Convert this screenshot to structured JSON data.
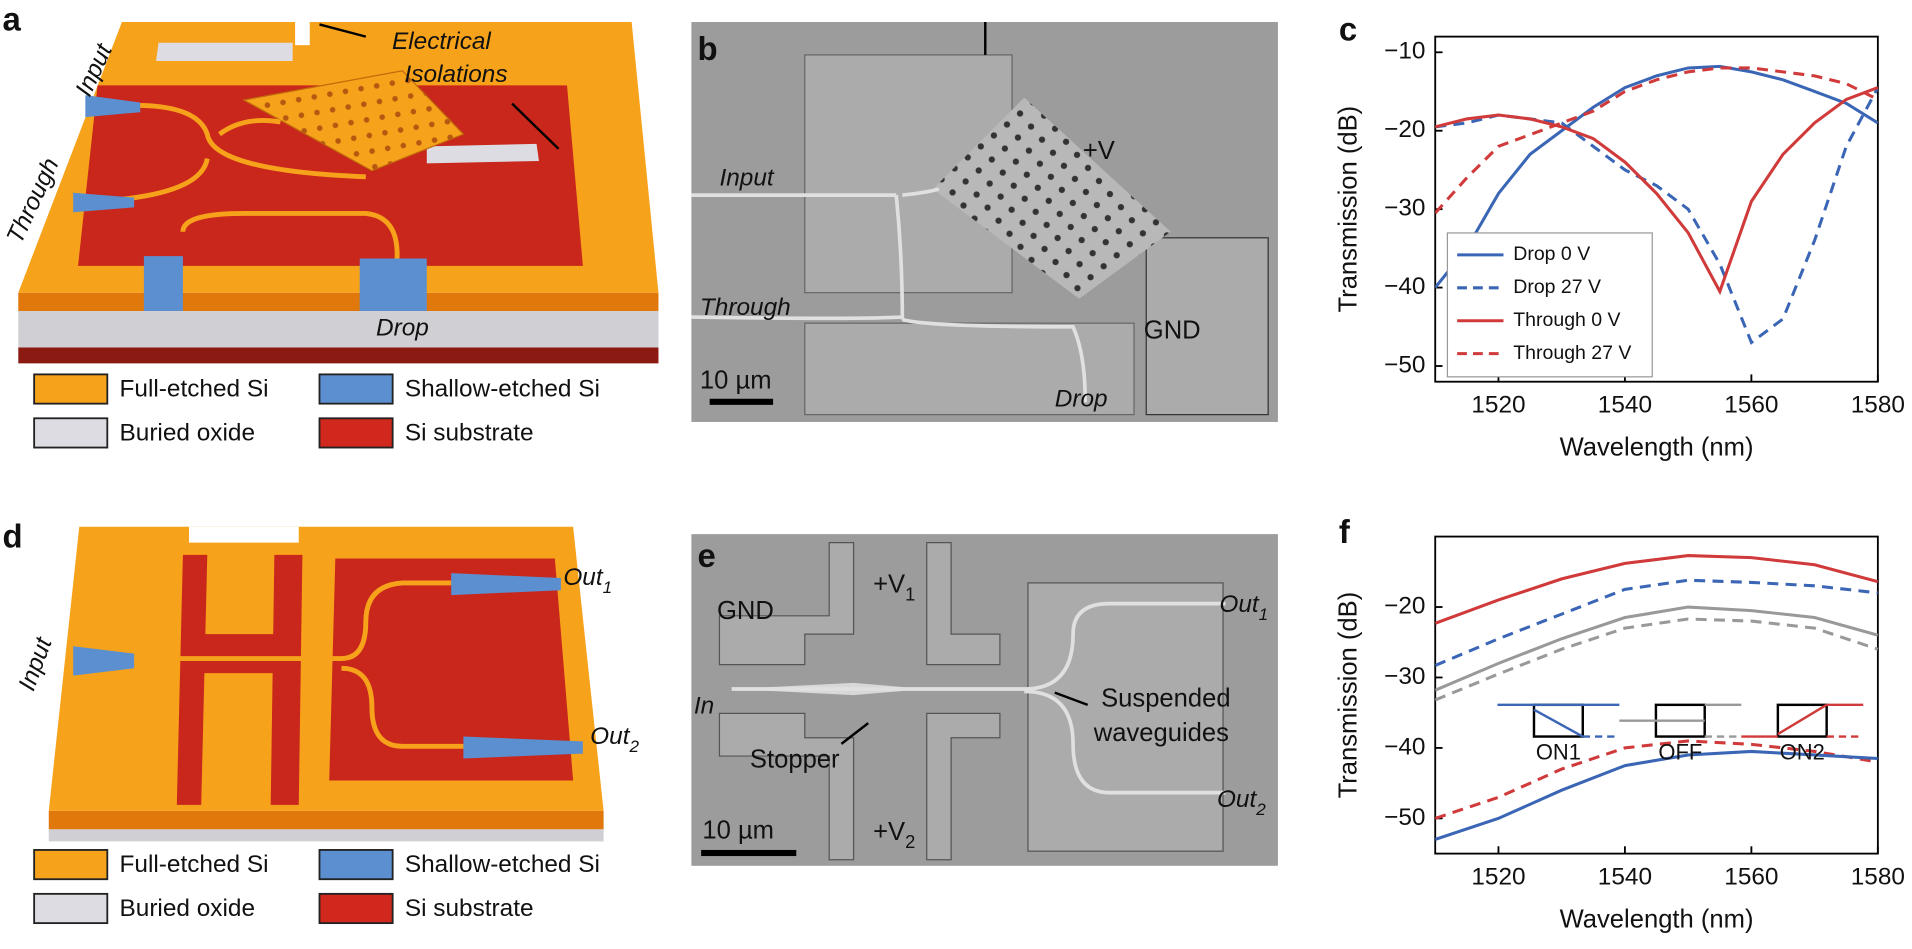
{
  "panels": {
    "a": {
      "label": "a",
      "input": "Input",
      "through": "Through",
      "drop": "Drop",
      "isolations": [
        "Electrical",
        "Isolations"
      ],
      "legend": [
        {
          "text": "Full-etched Si",
          "color": "#f7a21b"
        },
        {
          "text": "Shallow-etched Si",
          "color": "#5b8fd0"
        },
        {
          "text": "Buried oxide",
          "color": "#dcdce2"
        },
        {
          "text": "Si substrate",
          "color": "#d0281c"
        }
      ]
    },
    "b": {
      "label": "b",
      "input": "Input",
      "through": "Through",
      "drop": "Drop",
      "plus_v": "+V",
      "gnd": "GND",
      "scale": "10 µm"
    },
    "d": {
      "label": "d",
      "input": "Input",
      "out1": [
        "Out",
        "1"
      ],
      "out2": [
        "Out",
        "2"
      ],
      "legend": [
        {
          "text": "Full-etched Si",
          "color": "#f7a21b"
        },
        {
          "text": "Shallow-etched Si",
          "color": "#5b8fd0"
        },
        {
          "text": "Buried oxide",
          "color": "#dcdce2"
        },
        {
          "text": "Si substrate",
          "color": "#d0281c"
        }
      ]
    },
    "e": {
      "label": "e",
      "gnd": "GND",
      "v1": [
        "+V",
        "1"
      ],
      "v2": [
        "+V",
        "2"
      ],
      "in": "In",
      "out1": [
        "Out",
        "1"
      ],
      "out2": [
        "Out",
        "2"
      ],
      "stopper": "Stopper",
      "suspended": [
        "Suspended",
        "waveguides"
      ],
      "scale": "10 µm"
    }
  },
  "chart_data": [
    {
      "type": "line",
      "panel_label": "c",
      "xlabel": "Wavelength (nm)",
      "ylabel": "Transmission (dB)",
      "x": [
        1510,
        1515,
        1520,
        1525,
        1530,
        1535,
        1540,
        1545,
        1550,
        1555,
        1560,
        1565,
        1570,
        1575,
        1580
      ],
      "series": [
        {
          "name": "Drop 0 V",
          "color": "#3a66b5",
          "style": "solid",
          "values": [
            -40,
            -35,
            -28,
            -23,
            -20,
            -17,
            -14.5,
            -13,
            -12,
            -11.8,
            -12.5,
            -13.5,
            -15,
            -16.5,
            -19
          ]
        },
        {
          "name": "Drop 27 V",
          "color": "#3a66b5",
          "style": "dashed",
          "values": [
            -19.5,
            -19,
            -18,
            -18.5,
            -19,
            -22,
            -25,
            -27,
            -30,
            -37,
            -47,
            -44,
            -34,
            -22,
            -14.5
          ]
        },
        {
          "name": "Through 0 V",
          "color": "#d03a3a",
          "style": "solid",
          "values": [
            -19.5,
            -18.5,
            -18,
            -18.5,
            -19.5,
            -21,
            -24,
            -28,
            -33,
            -40.5,
            -29,
            -23,
            -19,
            -16,
            -14.5
          ]
        },
        {
          "name": "Through 27 V",
          "color": "#d03a3a",
          "style": "dashed",
          "values": [
            -30.5,
            -26,
            -22,
            -20.5,
            -19,
            -17.5,
            -15,
            -13.5,
            -12.5,
            -12,
            -12,
            -12.5,
            -13,
            -14,
            -16
          ]
        }
      ],
      "xlim": [
        1510,
        1580
      ],
      "xticks": [
        1520,
        1540,
        1560,
        1580
      ],
      "ylim": [
        -52,
        -8
      ],
      "yticks": [
        {
          "value": -50,
          "label": "−50"
        },
        {
          "value": -40,
          "label": "−40"
        },
        {
          "value": -30,
          "label": "−30"
        },
        {
          "value": -20,
          "label": "−20"
        },
        {
          "value": -10,
          "label": "−10"
        }
      ],
      "legend": "lower left"
    },
    {
      "type": "line",
      "panel_label": "f",
      "xlabel": "Wavelength (nm)",
      "ylabel": "Transmission (dB)",
      "x": [
        1510,
        1520,
        1530,
        1540,
        1550,
        1560,
        1570,
        1580
      ],
      "series": [
        {
          "color": "#d03a3a",
          "style": "solid",
          "values": [
            -22.3,
            -19,
            -16,
            -13.8,
            -12.7,
            -13,
            -14,
            -16.4
          ]
        },
        {
          "color": "#3a66b5",
          "style": "dashed",
          "values": [
            -28.3,
            -24.5,
            -21,
            -17.5,
            -16.2,
            -16.5,
            -17,
            -18
          ]
        },
        {
          "color": "#999999",
          "style": "solid",
          "values": [
            -31.8,
            -28,
            -24.5,
            -21.5,
            -20,
            -20.5,
            -21.5,
            -24
          ]
        },
        {
          "color": "#999999",
          "style": "dashed",
          "values": [
            -33.2,
            -29.5,
            -26,
            -23,
            -21.7,
            -22,
            -23,
            -26
          ]
        },
        {
          "color": "#d03a3a",
          "style": "dashed",
          "values": [
            -50,
            -47,
            -43,
            -40,
            -39,
            -39.5,
            -40.5,
            -42
          ]
        },
        {
          "color": "#3a66b5",
          "style": "solid",
          "values": [
            -53,
            -50,
            -46,
            -42.5,
            -41,
            -40.5,
            -41,
            -41.5
          ]
        }
      ],
      "xlim": [
        1510,
        1580
      ],
      "xticks": [
        1520,
        1540,
        1560,
        1580
      ],
      "ylim": [
        -55,
        -10
      ],
      "yticks": [
        {
          "value": -50,
          "label": "−50"
        },
        {
          "value": -40,
          "label": "−40"
        },
        {
          "value": -30,
          "label": "−30"
        },
        {
          "value": -20,
          "label": "−20"
        }
      ],
      "annotations": [
        "ON1",
        "OFF",
        "ON2"
      ]
    }
  ]
}
